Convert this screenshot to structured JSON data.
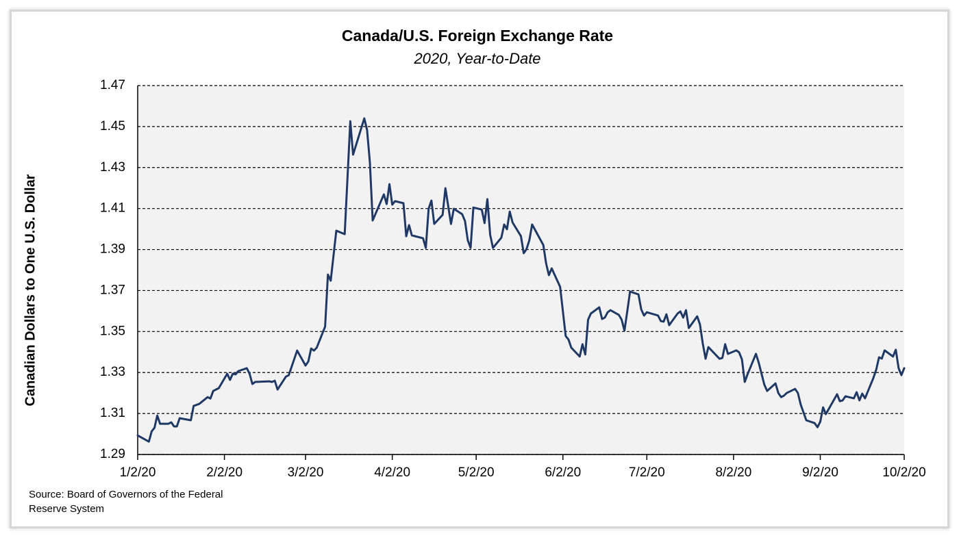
{
  "chart_data": {
    "type": "line",
    "title": "Canada/U.S. Foreign Exchange Rate",
    "subtitle": "2020, Year-to-Date",
    "ylabel": "Canadian Dollars to One U.S. Dollar",
    "source": "Source:  Board of Governors of the Federal Reserve System",
    "color": "#1f3864",
    "grid": true,
    "ylim": [
      1.29,
      1.47
    ],
    "yticks": [
      1.29,
      1.31,
      1.33,
      1.35,
      1.37,
      1.39,
      1.41,
      1.43,
      1.45,
      1.47
    ],
    "xlim": [
      "2020-01-02",
      "2020-10-02"
    ],
    "xticks": [
      {
        "value": "2020-01-02",
        "label": "1/2/20"
      },
      {
        "value": "2020-02-02",
        "label": "2/2/20"
      },
      {
        "value": "2020-03-02",
        "label": "3/2/20"
      },
      {
        "value": "2020-04-02",
        "label": "4/2/20"
      },
      {
        "value": "2020-05-02",
        "label": "5/2/20"
      },
      {
        "value": "2020-06-02",
        "label": "6/2/20"
      },
      {
        "value": "2020-07-02",
        "label": "7/2/20"
      },
      {
        "value": "2020-08-02",
        "label": "8/2/20"
      },
      {
        "value": "2020-09-02",
        "label": "9/2/20"
      },
      {
        "value": "2020-10-02",
        "label": "10/2/20"
      }
    ],
    "x": [
      "2020-01-02",
      "2020-01-06",
      "2020-01-07",
      "2020-01-08",
      "2020-01-09",
      "2020-01-10",
      "2020-01-13",
      "2020-01-14",
      "2020-01-15",
      "2020-01-16",
      "2020-01-17",
      "2020-01-21",
      "2020-01-22",
      "2020-01-24",
      "2020-01-27",
      "2020-01-28",
      "2020-01-29",
      "2020-01-31",
      "2020-02-03",
      "2020-02-04",
      "2020-02-05",
      "2020-02-06",
      "2020-02-07",
      "2020-02-10",
      "2020-02-11",
      "2020-02-12",
      "2020-02-13",
      "2020-02-18",
      "2020-02-19",
      "2020-02-20",
      "2020-02-21",
      "2020-02-24",
      "2020-02-25",
      "2020-02-28",
      "2020-03-02",
      "2020-03-03",
      "2020-03-04",
      "2020-03-05",
      "2020-03-06",
      "2020-03-09",
      "2020-03-10",
      "2020-03-11",
      "2020-03-13",
      "2020-03-16",
      "2020-03-18",
      "2020-03-19",
      "2020-03-23",
      "2020-03-24",
      "2020-03-25",
      "2020-03-26",
      "2020-03-30",
      "2020-03-31",
      "2020-04-01",
      "2020-04-02",
      "2020-04-03",
      "2020-04-06",
      "2020-04-07",
      "2020-04-08",
      "2020-04-09",
      "2020-04-13",
      "2020-04-14",
      "2020-04-15",
      "2020-04-16",
      "2020-04-17",
      "2020-04-20",
      "2020-04-21",
      "2020-04-23",
      "2020-04-24",
      "2020-04-27",
      "2020-04-28",
      "2020-04-29",
      "2020-04-30",
      "2020-05-01",
      "2020-05-04",
      "2020-05-05",
      "2020-05-06",
      "2020-05-07",
      "2020-05-08",
      "2020-05-11",
      "2020-05-12",
      "2020-05-13",
      "2020-05-14",
      "2020-05-15",
      "2020-05-18",
      "2020-05-19",
      "2020-05-20",
      "2020-05-21",
      "2020-05-22",
      "2020-05-26",
      "2020-05-27",
      "2020-05-28",
      "2020-05-29",
      "2020-06-01",
      "2020-06-02",
      "2020-06-03",
      "2020-06-04",
      "2020-06-05",
      "2020-06-08",
      "2020-06-09",
      "2020-06-10",
      "2020-06-11",
      "2020-06-12",
      "2020-06-15",
      "2020-06-16",
      "2020-06-17",
      "2020-06-18",
      "2020-06-19",
      "2020-06-22",
      "2020-06-23",
      "2020-06-24",
      "2020-06-25",
      "2020-06-26",
      "2020-06-29",
      "2020-06-30",
      "2020-07-01",
      "2020-07-02",
      "2020-07-06",
      "2020-07-07",
      "2020-07-08",
      "2020-07-09",
      "2020-07-10",
      "2020-07-13",
      "2020-07-14",
      "2020-07-15",
      "2020-07-16",
      "2020-07-17",
      "2020-07-20",
      "2020-07-21",
      "2020-07-22",
      "2020-07-23",
      "2020-07-24",
      "2020-07-27",
      "2020-07-28",
      "2020-07-29",
      "2020-07-30",
      "2020-07-31",
      "2020-08-03",
      "2020-08-04",
      "2020-08-05",
      "2020-08-06",
      "2020-08-07",
      "2020-08-10",
      "2020-08-11",
      "2020-08-12",
      "2020-08-13",
      "2020-08-14",
      "2020-08-17",
      "2020-08-18",
      "2020-08-19",
      "2020-08-20",
      "2020-08-21",
      "2020-08-24",
      "2020-08-25",
      "2020-08-26",
      "2020-08-28",
      "2020-08-31",
      "2020-09-01",
      "2020-09-02",
      "2020-09-03",
      "2020-09-04",
      "2020-09-08",
      "2020-09-09",
      "2020-09-10",
      "2020-09-11",
      "2020-09-14",
      "2020-09-15",
      "2020-09-16",
      "2020-09-17",
      "2020-09-18",
      "2020-09-21",
      "2020-09-22",
      "2020-09-23",
      "2020-09-24",
      "2020-09-25",
      "2020-09-28",
      "2020-09-29",
      "2020-09-30",
      "2020-10-01",
      "2020-10-02"
    ],
    "values": [
      1.2993,
      1.2963,
      1.3013,
      1.303,
      1.309,
      1.305,
      1.305,
      1.3057,
      1.3037,
      1.3037,
      1.3077,
      1.3067,
      1.3137,
      1.3147,
      1.318,
      1.3173,
      1.321,
      1.3224,
      1.3294,
      1.3264,
      1.3294,
      1.3291,
      1.3307,
      1.3321,
      1.3294,
      1.3244,
      1.3254,
      1.3257,
      1.3254,
      1.326,
      1.3217,
      1.328,
      1.3287,
      1.3407,
      1.3334,
      1.3354,
      1.3417,
      1.3407,
      1.3421,
      1.3524,
      1.3778,
      1.3748,
      1.3992,
      1.3975,
      1.4526,
      1.4363,
      1.454,
      1.4483,
      1.4326,
      1.4042,
      1.4169,
      1.4122,
      1.4219,
      1.4119,
      1.4136,
      1.4126,
      1.3965,
      1.4019,
      1.3969,
      1.3955,
      1.3908,
      1.4099,
      1.4139,
      1.4025,
      1.4069,
      1.4199,
      1.4025,
      1.4099,
      1.4072,
      1.4039,
      1.3945,
      1.3908,
      1.4105,
      1.4095,
      1.4029,
      1.4146,
      1.3972,
      1.3908,
      1.3958,
      1.4022,
      1.3999,
      1.4085,
      1.4032,
      1.3965,
      1.3882,
      1.3902,
      1.3945,
      1.4022,
      1.3922,
      1.3832,
      1.3775,
      1.3808,
      1.3718,
      1.3598,
      1.3478,
      1.3461,
      1.3421,
      1.3378,
      1.3438,
      1.3388,
      1.3558,
      1.3588,
      1.3618,
      1.3561,
      1.3568,
      1.3594,
      1.3604,
      1.3581,
      1.3558,
      1.3504,
      1.3598,
      1.3695,
      1.3681,
      1.3608,
      1.3578,
      1.3594,
      1.3578,
      1.3551,
      1.3548,
      1.3584,
      1.3531,
      1.3588,
      1.3598,
      1.3568,
      1.3604,
      1.3517,
      1.3574,
      1.3534,
      1.3441,
      1.3367,
      1.3424,
      1.3381,
      1.3367,
      1.3371,
      1.3438,
      1.3391,
      1.3408,
      1.3398,
      1.3364,
      1.3254,
      1.3291,
      1.3391,
      1.3348,
      1.3294,
      1.3241,
      1.321,
      1.3247,
      1.32,
      1.318,
      1.3187,
      1.32,
      1.322,
      1.32,
      1.3144,
      1.3067,
      1.3053,
      1.3033,
      1.306,
      1.313,
      1.3097,
      1.3194,
      1.316,
      1.3164,
      1.3184,
      1.3174,
      1.3204,
      1.3164,
      1.3197,
      1.3174,
      1.3274,
      1.3314,
      1.3374,
      1.3368,
      1.3408,
      1.3378,
      1.3411,
      1.3321,
      1.3287,
      1.3321
    ]
  }
}
